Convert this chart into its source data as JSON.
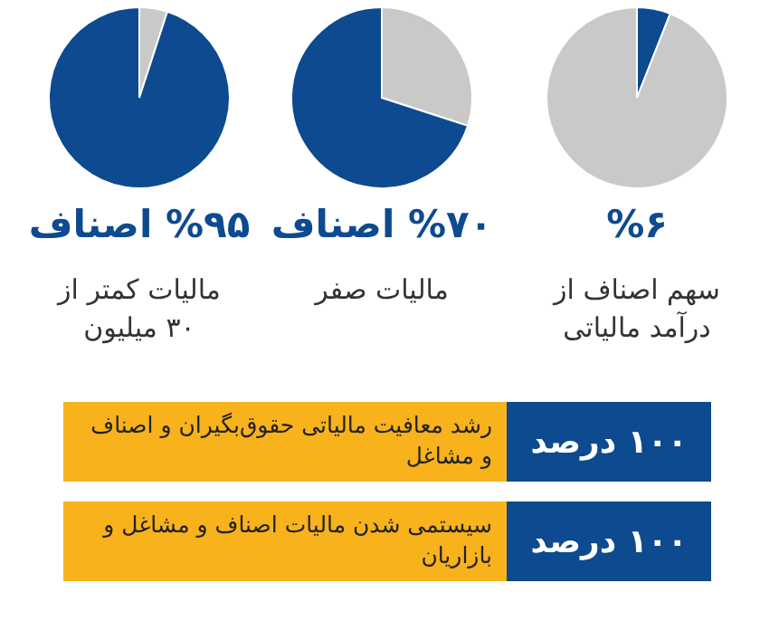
{
  "chart_data": [
    {
      "type": "pie",
      "title": "%۶",
      "subtitle": "سهم اصناف از درآمد مالیاتی",
      "categories": [
        null,
        null
      ],
      "values": [
        6,
        94
      ],
      "colors": [
        "#0d4a8f",
        "#c9c9c9"
      ]
    },
    {
      "type": "pie",
      "title": "%۷۰ اصناف",
      "subtitle": "مالیات صفر",
      "categories": [
        null,
        null
      ],
      "values": [
        30,
        70
      ],
      "colors": [
        "#c9c9c9",
        "#0d4a8f"
      ]
    },
    {
      "type": "pie",
      "title": "%۹۵ اصناف",
      "subtitle": "مالیات کمتر از ۳۰ میلیون",
      "categories": [
        null,
        null
      ],
      "values": [
        5,
        95
      ],
      "colors": [
        "#c9c9c9",
        "#0d4a8f"
      ]
    },
    {
      "type": "other",
      "annotations": [
        "۱۰۰ درصد",
        "رشد معافیت مالیاتی حقوق‌بگیران و اصناف و مشاغل",
        "۱۰۰ درصد",
        "سیستمی شدن مالیات اصناف و مشاغل و بازاریان"
      ]
    }
  ]
}
